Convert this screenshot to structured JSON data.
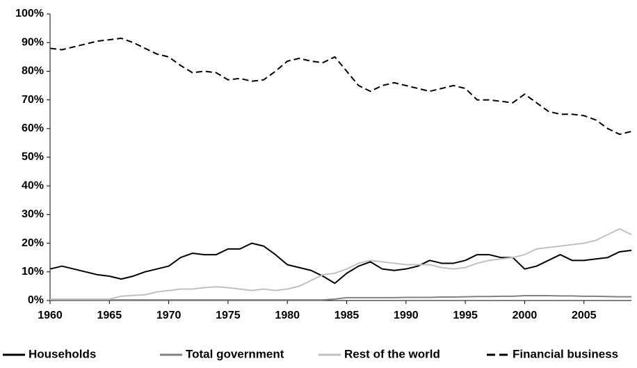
{
  "chart_data": {
    "type": "line",
    "x": [
      1960,
      1961,
      1962,
      1963,
      1964,
      1965,
      1966,
      1967,
      1968,
      1969,
      1970,
      1971,
      1972,
      1973,
      1974,
      1975,
      1976,
      1977,
      1978,
      1979,
      1980,
      1981,
      1982,
      1983,
      1984,
      1985,
      1986,
      1987,
      1988,
      1989,
      1990,
      1991,
      1992,
      1993,
      1994,
      1995,
      1996,
      1997,
      1998,
      1999,
      2000,
      2001,
      2002,
      2003,
      2004,
      2005,
      2006,
      2007,
      2008,
      2009
    ],
    "series": [
      {
        "name": "Households",
        "color": "#000000",
        "dashed": false,
        "values": [
          11,
          12,
          11,
          10,
          9,
          8.5,
          7.5,
          8.5,
          10,
          11,
          12,
          15,
          16.5,
          16,
          16,
          18,
          18,
          20,
          19,
          16,
          12.5,
          11.5,
          10.5,
          8.5,
          6,
          9.5,
          12,
          13.5,
          11,
          10.5,
          11,
          12,
          14,
          13,
          13,
          14,
          16,
          16,
          15,
          15,
          11,
          12,
          14,
          16,
          14,
          14,
          14.5,
          15,
          17,
          17.5
        ]
      },
      {
        "name": "Total government",
        "color": "#808080",
        "dashed": false,
        "values": [
          0.2,
          0.2,
          0.2,
          0.2,
          0.2,
          0.2,
          0.2,
          0.2,
          0.2,
          0.2,
          0.2,
          0.2,
          0.2,
          0.2,
          0.2,
          0.2,
          0.2,
          0.2,
          0.2,
          0.2,
          0.2,
          0.2,
          0.2,
          0.2,
          0.5,
          1,
          1,
          1,
          1,
          1,
          1.1,
          1.1,
          1.1,
          1.2,
          1.2,
          1.3,
          1.4,
          1.4,
          1.5,
          1.5,
          1.7,
          1.7,
          1.7,
          1.6,
          1.6,
          1.5,
          1.5,
          1.4,
          1.3,
          1.3
        ]
      },
      {
        "name": "Rest of the world",
        "color": "#c0c0c0",
        "dashed": false,
        "values": [
          0.5,
          0.5,
          0.5,
          0.5,
          0.5,
          0.5,
          1.5,
          1.8,
          2,
          3,
          3.5,
          4,
          4,
          4.5,
          4.8,
          4.5,
          4,
          3.5,
          4,
          3.5,
          4,
          5,
          7,
          9,
          9.5,
          11,
          13,
          14,
          13.5,
          13,
          12.5,
          12.5,
          12.5,
          11.5,
          11,
          11.5,
          13,
          14,
          14.5,
          15,
          16,
          18,
          18.5,
          19,
          19.5,
          20,
          21,
          23,
          25,
          23
        ]
      },
      {
        "name": "Financial business",
        "color": "#000000",
        "dashed": true,
        "values": [
          88,
          87.5,
          88.5,
          89.5,
          90.5,
          91,
          91.5,
          90,
          88,
          86,
          85,
          82,
          79.5,
          80,
          79.5,
          77,
          77.5,
          76.5,
          77,
          80,
          83.5,
          84.5,
          83.5,
          83,
          85,
          80,
          75,
          73,
          75,
          76,
          75,
          74,
          73,
          74,
          75,
          74,
          70,
          70,
          69.5,
          69,
          72,
          69,
          66,
          65,
          65,
          64.5,
          63,
          60,
          58,
          59
        ]
      }
    ],
    "xlim": [
      1960,
      2009
    ],
    "xticks": [
      1960,
      1965,
      1970,
      1975,
      1980,
      1985,
      1990,
      1995,
      2000,
      2005
    ],
    "ylim": [
      0,
      100
    ],
    "yticks": [
      {
        "value": 0,
        "label": "0%"
      },
      {
        "value": 10,
        "label": "10%"
      },
      {
        "value": 20,
        "label": "20%"
      },
      {
        "value": 30,
        "label": "30%"
      },
      {
        "value": 40,
        "label": "40%"
      },
      {
        "value": 50,
        "label": "50%"
      },
      {
        "value": 60,
        "label": "60%"
      },
      {
        "value": 70,
        "label": "70%"
      },
      {
        "value": 80,
        "label": "80%"
      },
      {
        "value": 90,
        "label": "90%"
      },
      {
        "value": 100,
        "label": "100%"
      }
    ],
    "grid": false,
    "legend": "bottom"
  }
}
